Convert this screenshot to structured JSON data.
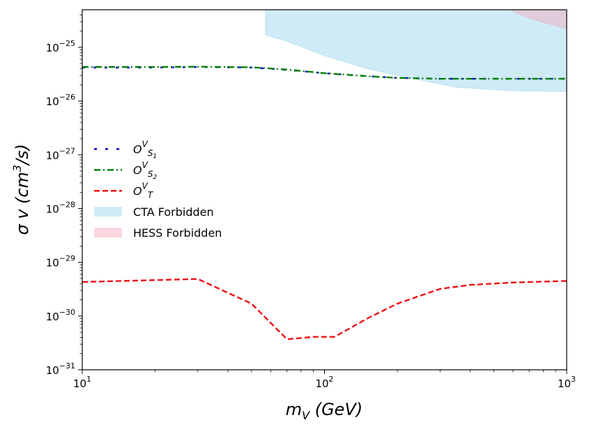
{
  "chart_data": {
    "type": "line",
    "title": "",
    "xlabel_base": "m",
    "xlabel_sub": "V",
    "xlabel_rest": " (GeV)",
    "ylabel_main": "σ v (cm",
    "ylabel_sup": "3",
    "ylabel_end": "/s)",
    "xscale": "log",
    "yscale": "log",
    "xlim": [
      10,
      1000
    ],
    "ylim": [
      1e-31,
      5e-25
    ],
    "x_ticks": [
      {
        "value": 10,
        "base": "10",
        "exp": "1"
      },
      {
        "value": 100,
        "base": "10",
        "exp": "2"
      },
      {
        "value": 1000,
        "base": "10",
        "exp": "3"
      }
    ],
    "y_ticks": [
      {
        "value": 1e-31,
        "base": "10",
        "exp": "−31"
      },
      {
        "value": 1e-30,
        "base": "10",
        "exp": "−30"
      },
      {
        "value": 1e-29,
        "base": "10",
        "exp": "−29"
      },
      {
        "value": 1e-28,
        "base": "10",
        "exp": "−28"
      },
      {
        "value": 1e-27,
        "base": "10",
        "exp": "−27"
      },
      {
        "value": 1e-26,
        "base": "10",
        "exp": "−26"
      },
      {
        "value": 1e-25,
        "base": "10",
        "exp": "−25"
      }
    ],
    "series": [
      {
        "name": "O^V_S1",
        "legend_base": "O",
        "legend_sup": "V",
        "legend_sub": "S",
        "legend_subsub": "1",
        "color": "#0000dd",
        "dash": "4,12",
        "x": [
          10,
          20,
          30,
          50,
          70,
          100,
          150,
          200,
          300,
          500,
          700,
          1000
        ],
        "y": [
          4.2e-26,
          4.2e-26,
          4.3e-26,
          4.2e-26,
          3.8e-26,
          3.3e-26,
          2.9e-26,
          2.7e-26,
          2.6e-26,
          2.6e-26,
          2.6e-26,
          2.6e-26
        ]
      },
      {
        "name": "O^V_S2",
        "legend_base": "O",
        "legend_sup": "V",
        "legend_sub": "S",
        "legend_subsub": "2",
        "color": "#008000",
        "dash": "9,4,2,4",
        "x": [
          10,
          20,
          30,
          50,
          70,
          100,
          150,
          200,
          300,
          500,
          700,
          1000
        ],
        "y": [
          4.3e-26,
          4.3e-26,
          4.35e-26,
          4.25e-26,
          3.85e-26,
          3.3e-26,
          2.9e-26,
          2.7e-26,
          2.6e-26,
          2.6e-26,
          2.6e-26,
          2.6e-26
        ]
      },
      {
        "name": "O^V_T",
        "legend_base": "O",
        "legend_sup": "V",
        "legend_sub": "T",
        "legend_subsub": "",
        "color": "#ee1111",
        "dash": "8,4",
        "x": [
          10,
          30,
          50,
          70,
          90,
          110,
          150,
          200,
          300,
          400,
          600,
          1000
        ],
        "y": [
          4.3e-30,
          4.9e-30,
          1.7e-30,
          3.7e-31,
          4.1e-31,
          4.1e-31,
          9e-31,
          1.7e-30,
          3.2e-30,
          3.8e-30,
          4.2e-30,
          4.5e-30
        ]
      }
    ],
    "regions": [
      {
        "name": "CTA Forbidden",
        "color": "#87ceeb",
        "opacity": 0.4,
        "x_lower": [
          57,
          70,
          100,
          150,
          200,
          350,
          600,
          1000
        ],
        "y_lower": [
          1.7e-25,
          1.3e-25,
          7e-26,
          4e-26,
          3e-26,
          1.8e-26,
          1.55e-26,
          1.5e-26
        ],
        "y_upper": 1e-24
      },
      {
        "name": "HESS Forbidden",
        "color": "#f4a6b8",
        "opacity": 0.45,
        "x_lower": [
          580,
          700,
          850,
          1000
        ],
        "y_lower": [
          5e-25,
          3.5e-25,
          2.7e-25,
          2.2e-25
        ],
        "y_upper": 1e-24
      }
    ],
    "legend": {
      "position": "center-left"
    }
  }
}
